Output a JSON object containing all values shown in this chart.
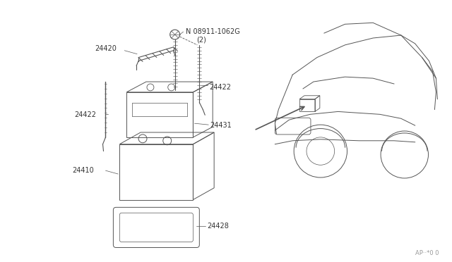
{
  "bg_color": "#ffffff",
  "line_color": "#555555",
  "text_color": "#333333",
  "fig_width": 6.4,
  "fig_height": 3.72,
  "watermark": "AP··*0 0"
}
